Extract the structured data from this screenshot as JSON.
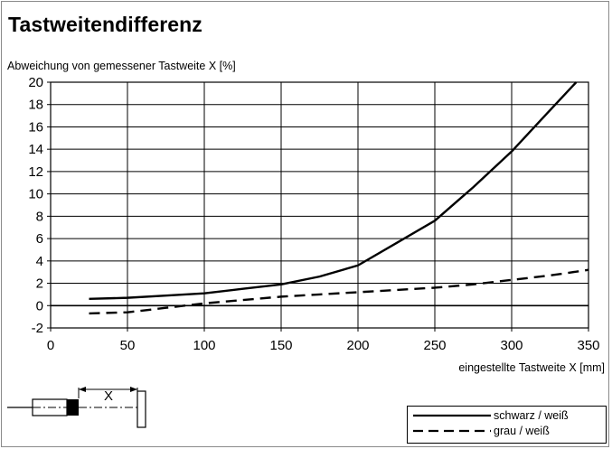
{
  "chart_data": {
    "type": "line",
    "title": "Tastweitendifferenz",
    "xlabel": "eingestellte Tastweite X [mm]",
    "ylabel": "Abweichung von gemessener Tastweite X [%]",
    "xlim": [
      0,
      350
    ],
    "ylim": [
      -2,
      20
    ],
    "xticks": [
      "0",
      "50",
      "100",
      "150",
      "200",
      "250",
      "300",
      "350"
    ],
    "yticks": [
      "20",
      "18",
      "16",
      "14",
      "12",
      "10",
      "8",
      "6",
      "4",
      "2",
      "0",
      "-2"
    ],
    "grid": true,
    "legend_position": "bottom-right",
    "series": [
      {
        "name": "schwarz / weiß",
        "style": "solid",
        "color": "#000000",
        "x": [
          25,
          50,
          75,
          100,
          125,
          150,
          175,
          200,
          225,
          250,
          275,
          300,
          325,
          342
        ],
        "y": [
          0.6,
          0.7,
          0.9,
          1.1,
          1.5,
          1.9,
          2.6,
          3.6,
          5.6,
          7.6,
          10.6,
          13.8,
          17.5,
          20
        ]
      },
      {
        "name": "grau / weiß",
        "style": "dashed",
        "color": "#000000",
        "x": [
          25,
          50,
          75,
          100,
          125,
          150,
          175,
          200,
          225,
          250,
          275,
          300,
          325,
          350
        ],
        "y": [
          -0.7,
          -0.6,
          -0.2,
          0.2,
          0.5,
          0.8,
          1.0,
          1.2,
          1.4,
          1.6,
          1.9,
          2.3,
          2.7,
          3.2
        ]
      }
    ]
  },
  "diagram": {
    "dimension_label": "X"
  }
}
